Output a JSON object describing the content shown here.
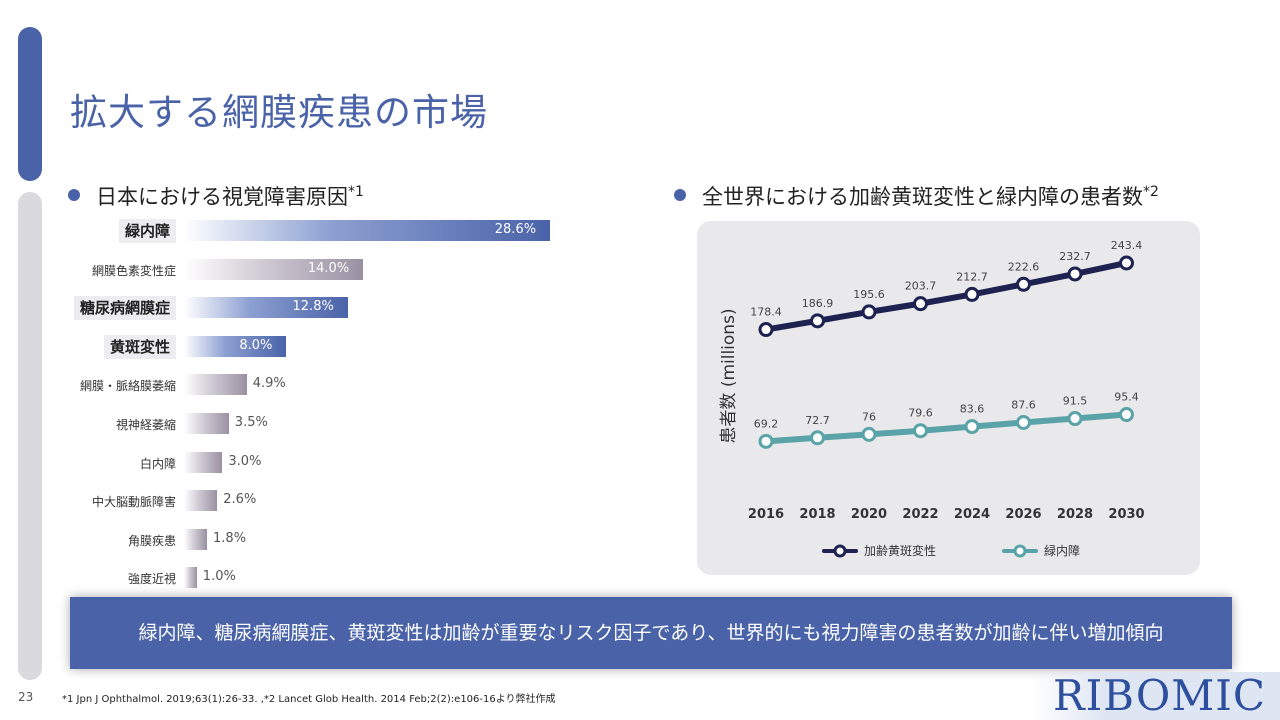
{
  "page": {
    "title": "拡大する網膜疾患の市場",
    "page_number": "23",
    "footnote": "*1 Jpn J Ophthalmol. 2019;63(1):26-33. ,*2  Lancet Glob Health. 2014 Feb;2(2):e106-16より弊社作成",
    "conclusion": "緑内障、糖尿病網膜症、黄斑変性は加齢が重要なリスク因子であり、世界的にも視力障害の患者数が加齢に伴い増加傾向",
    "logo_text": "RIBOMIC",
    "colors": {
      "accent": "#4a63a8",
      "series1": "#1d2250",
      "series2": "#5aa3a8"
    }
  },
  "left_section": {
    "heading": "日本における視覚障害原因",
    "note": "*1"
  },
  "right_section": {
    "heading": "全世界における加齢黄斑変性と緑内障の患者数",
    "note": "*2"
  },
  "chart_data": [
    {
      "type": "bar",
      "orientation": "horizontal",
      "categories": [
        "緑内障",
        "網膜色素変性症",
        "糖尿病網膜症",
        "黄斑変性",
        "網膜・脈絡膜萎縮",
        "視神経萎縮",
        "白内障",
        "中大脳動脈障害",
        "角膜疾患",
        "強度近視"
      ],
      "values": [
        28.6,
        14.0,
        12.8,
        8.0,
        4.9,
        3.5,
        3.0,
        2.6,
        1.8,
        1.0
      ],
      "value_labels": [
        "28.6%",
        "14.0%",
        "12.8%",
        "8.0%",
        "4.9%",
        "3.5%",
        "3.0%",
        "2.6%",
        "1.8%",
        "1.0%"
      ],
      "highlighted": [
        true,
        false,
        true,
        true,
        false,
        false,
        false,
        false,
        false,
        false
      ],
      "unit": "%"
    },
    {
      "type": "line",
      "x": [
        "2016",
        "2018",
        "2020",
        "2022",
        "2024",
        "2026",
        "2028",
        "2030"
      ],
      "ylabel": "患者数 (millions)",
      "ylim": [
        50,
        260
      ],
      "series": [
        {
          "name": "加齢黄斑変性",
          "values": [
            178.4,
            186.9,
            195.6,
            203.7,
            212.7,
            222.6,
            232.7,
            243.4
          ],
          "labels": [
            "178.4",
            "186.9",
            "195.6",
            "203.7",
            "212.7",
            "222.6",
            "232.7",
            "243.4"
          ]
        },
        {
          "name": "緑内障",
          "values": [
            69.2,
            72.7,
            76,
            79.6,
            83.6,
            87.6,
            91.5,
            95.4
          ],
          "labels": [
            "69.2",
            "72.7",
            "76",
            "79.6",
            "83.6",
            "87.6",
            "91.5",
            "95.4"
          ]
        }
      ],
      "legend": "bottom"
    }
  ]
}
